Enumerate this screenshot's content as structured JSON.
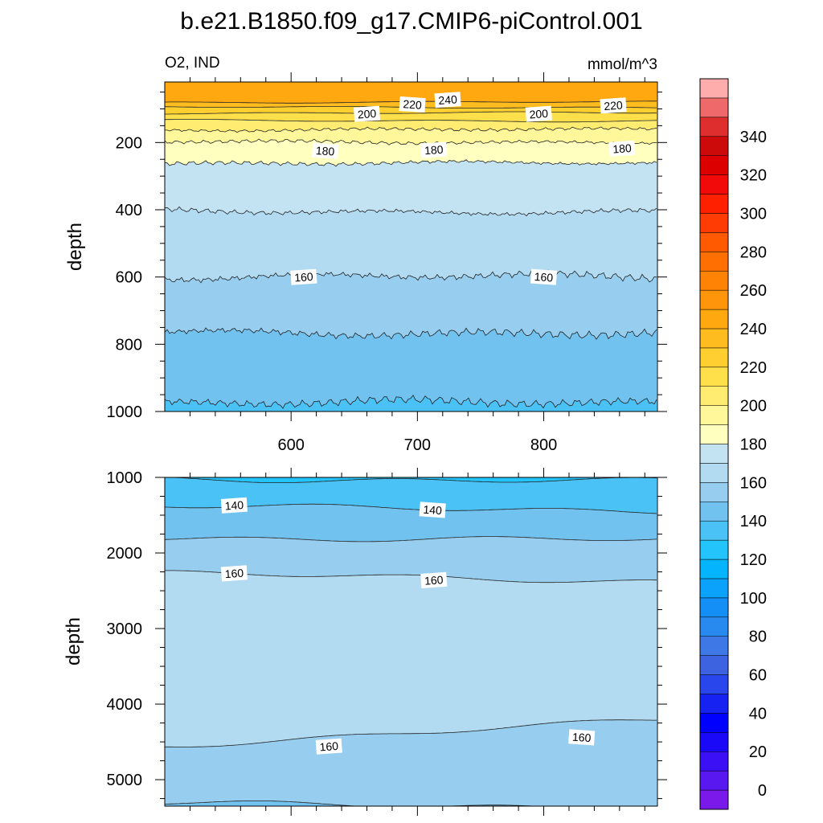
{
  "chart_data": {
    "type": "contour",
    "title": "b.e21.B1850.f09_g17.CMIP6-piControl.001",
    "variable": "O2, IND",
    "units": "mmol/m^3",
    "x_range": [
      500,
      890
    ],
    "upper_panel": {
      "ylabel": "depth",
      "ylim": [
        1000,
        20
      ],
      "yticks": [
        200,
        400,
        600,
        800,
        1000
      ],
      "xticks": [
        600,
        700,
        800
      ],
      "contour_depths": [
        {
          "level": 240,
          "depth": 80
        },
        {
          "level": 230,
          "depth": 95
        },
        {
          "level": 220,
          "depth": 112
        },
        {
          "level": 210,
          "depth": 135
        },
        {
          "level": 200,
          "depth": 162
        },
        {
          "level": 190,
          "depth": 198
        },
        {
          "level": 180,
          "depth": 262
        },
        {
          "level": 170,
          "depth": 405
        },
        {
          "level": 160,
          "depth": 600
        },
        {
          "level": 150,
          "depth": 765
        },
        {
          "level": 140,
          "depth": 975
        }
      ],
      "contour_labels": [
        {
          "text": "240",
          "x": 724,
          "depth": 73
        },
        {
          "text": "220",
          "x": 696,
          "depth": 87
        },
        {
          "text": "220",
          "x": 855,
          "depth": 90
        },
        {
          "text": "200",
          "x": 660,
          "depth": 115
        },
        {
          "text": "200",
          "x": 796,
          "depth": 115
        },
        {
          "text": "180",
          "x": 627,
          "depth": 225
        },
        {
          "text": "180",
          "x": 713,
          "depth": 222
        },
        {
          "text": "180",
          "x": 862,
          "depth": 218
        },
        {
          "text": "160",
          "x": 610,
          "depth": 600
        },
        {
          "text": "160",
          "x": 800,
          "depth": 600
        }
      ]
    },
    "lower_panel": {
      "ylabel": "depth",
      "ylim": [
        5350,
        1000
      ],
      "yticks": [
        1000,
        2000,
        3000,
        4000,
        5000
      ],
      "contour_depths": [
        {
          "level": 130,
          "depth": 1010
        },
        {
          "level": 140,
          "depth": 1390
        },
        {
          "level": 150,
          "depth": 1790
        },
        {
          "level": 160,
          "depth": 2280
        },
        {
          "level": 160,
          "depth": 4540
        },
        {
          "level": 150,
          "depth": 5320
        }
      ],
      "contour_labels": [
        {
          "text": "140",
          "x": 555,
          "depth": 1370
        },
        {
          "text": "140",
          "x": 712,
          "depth": 1430
        },
        {
          "text": "160",
          "x": 555,
          "depth": 2270
        },
        {
          "text": "160",
          "x": 713,
          "depth": 2360
        },
        {
          "text": "160",
          "x": 630,
          "depth": 4560
        },
        {
          "text": "160",
          "x": 830,
          "depth": 4440
        }
      ]
    },
    "colorbar": {
      "min": -10,
      "max": 360,
      "step": 10,
      "labels": [
        "0",
        "20",
        "40",
        "60",
        "80",
        "100",
        "120",
        "140",
        "160",
        "180",
        "200",
        "220",
        "240",
        "260",
        "280",
        "300",
        "320",
        "340"
      ],
      "colors": [
        "#7a1aea",
        "#5a18f0",
        "#3c10f4",
        "#1a08f8",
        "#0000ff",
        "#1622f2",
        "#2846ec",
        "#3d63e0",
        "#3e78e6",
        "#2889ee",
        "#138ff6",
        "#0aa2fb",
        "#04b4fd",
        "#22c4fb",
        "#4bc2f5",
        "#72c2f0",
        "#97cdee",
        "#b2dbf2",
        "#c3e3f3",
        "#ffffc0",
        "#fff799",
        "#ffec70",
        "#ffe04a",
        "#ffcf30",
        "#ffbc1e",
        "#ffa810",
        "#ff960a",
        "#ff8304",
        "#ff6f02",
        "#ff5a02",
        "#ff3c04",
        "#ff2000",
        "#f20a0a",
        "#dc0000",
        "#cc0a0a",
        "#de2e2e",
        "#ee6a6a",
        "#ffacac"
      ]
    }
  }
}
